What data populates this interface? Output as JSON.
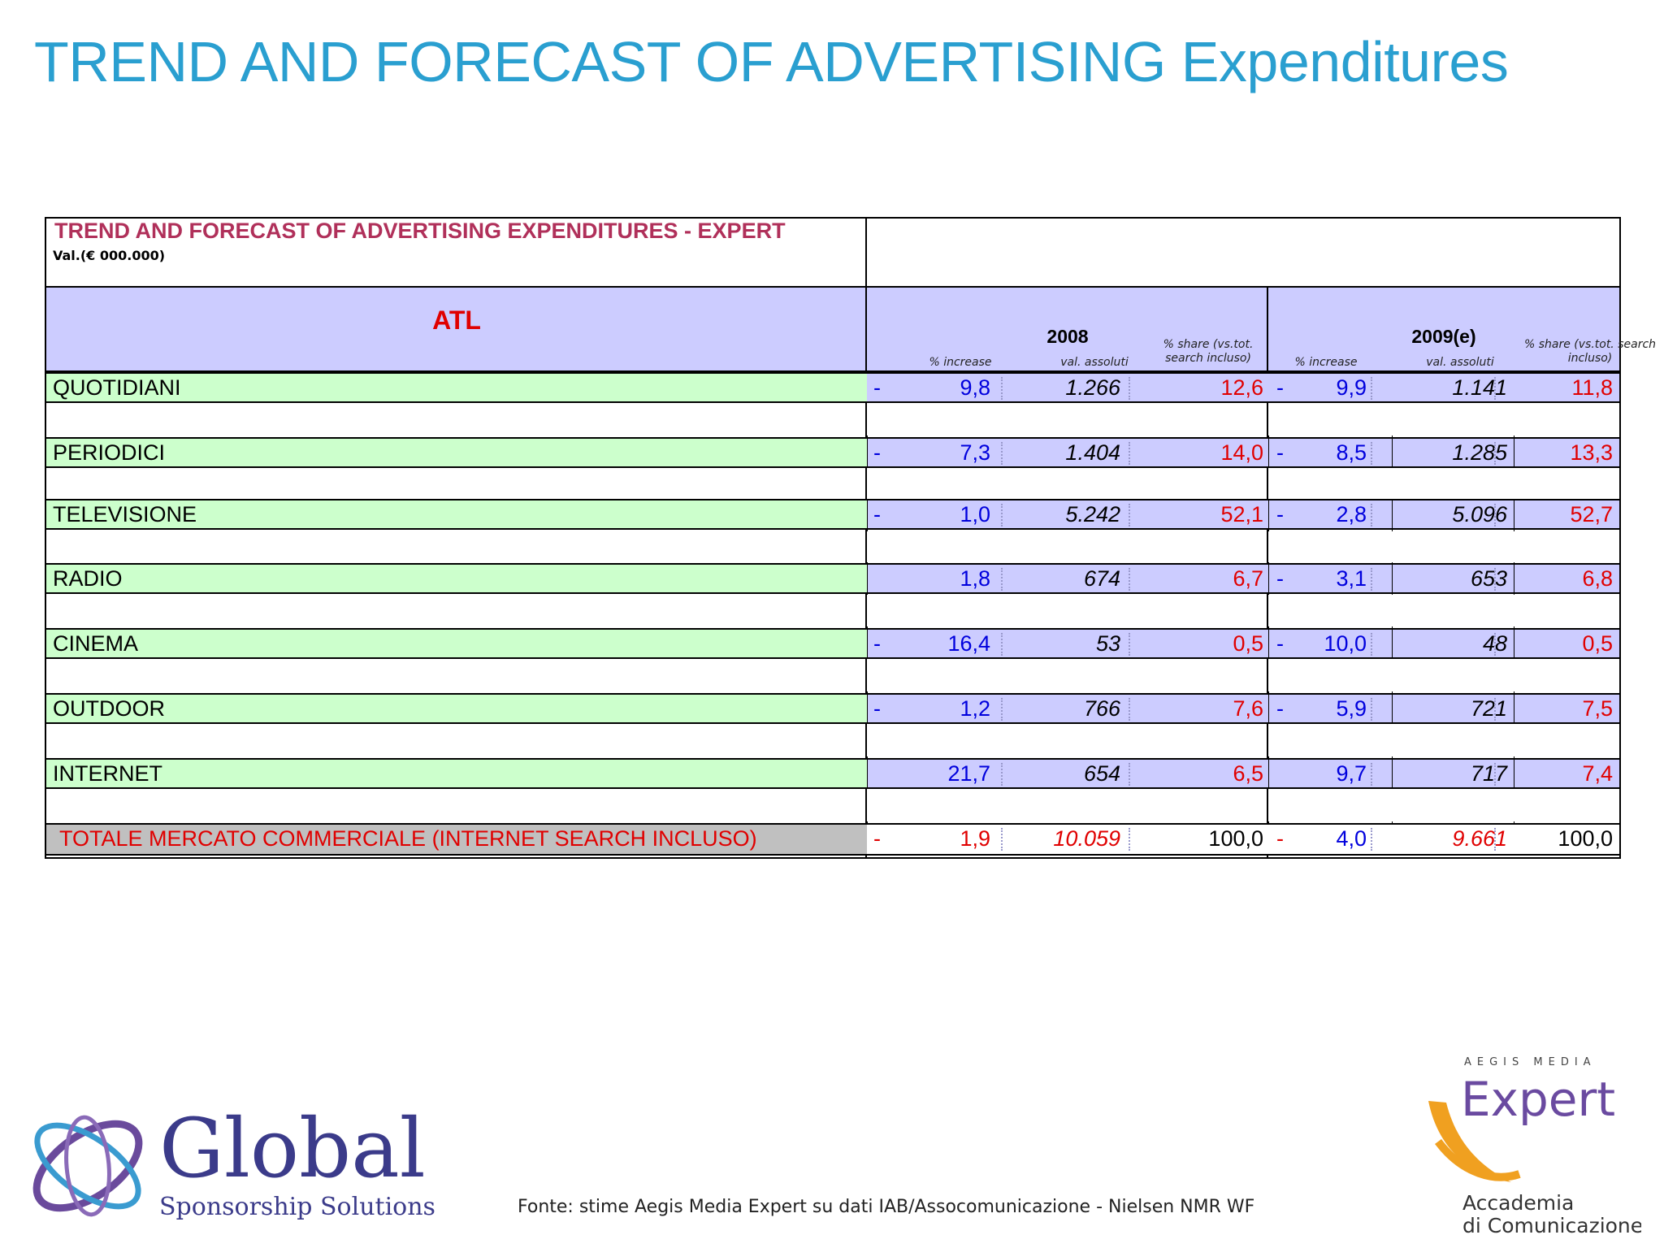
{
  "slide_title": "TREND AND FORECAST OF ADVERTISING Expenditures",
  "table": {
    "title": "TREND AND FORECAST OF ADVERTISING EXPENDITURES - EXPERT",
    "unit": "Val.(€ 000.000)",
    "section_label": "ATL",
    "years": [
      "2008",
      "2009(e)"
    ],
    "subheaders": {
      "increase": "% increase",
      "absolute": "val. assoluti",
      "share_2008": "% share (vs.tot. search incluso)",
      "share_2009": "% share (vs.tot. search incluso)"
    },
    "rows": [
      {
        "label": "QUOTIDIANI",
        "y2008": {
          "neg": "-",
          "inc": "9,8",
          "abs": "1.266",
          "share": "12,6"
        },
        "y2009": {
          "neg": "-",
          "inc": "9,9",
          "abs": "1.141",
          "share": "11,8"
        }
      },
      {
        "label": "PERIODICI",
        "y2008": {
          "neg": "-",
          "inc": "7,3",
          "abs": "1.404",
          "share": "14,0"
        },
        "y2009": {
          "neg": "-",
          "inc": "8,5",
          "abs": "1.285",
          "share": "13,3"
        }
      },
      {
        "label": "TELEVISIONE",
        "y2008": {
          "neg": "-",
          "inc": "1,0",
          "abs": "5.242",
          "share": "52,1"
        },
        "y2009": {
          "neg": "-",
          "inc": "2,8",
          "abs": "5.096",
          "share": "52,7"
        }
      },
      {
        "label": "RADIO",
        "y2008": {
          "neg": "",
          "inc": "1,8",
          "abs": "674",
          "share": "6,7"
        },
        "y2009": {
          "neg": "-",
          "inc": "3,1",
          "abs": "653",
          "share": "6,8"
        }
      },
      {
        "label": "CINEMA",
        "y2008": {
          "neg": "-",
          "inc": "16,4",
          "abs": "53",
          "share": "0,5"
        },
        "y2009": {
          "neg": "-",
          "inc": "10,0",
          "abs": "48",
          "share": "0,5"
        }
      },
      {
        "label": "OUTDOOR",
        "y2008": {
          "neg": "-",
          "inc": "1,2",
          "abs": "766",
          "share": "7,6"
        },
        "y2009": {
          "neg": "-",
          "inc": "5,9",
          "abs": "721",
          "share": "7,5"
        }
      },
      {
        "label": "INTERNET",
        "y2008": {
          "neg": "",
          "inc": "21,7",
          "abs": "654",
          "share": "6,5"
        },
        "y2009": {
          "neg": "",
          "inc": "9,7",
          "abs": "717",
          "share": "7,4"
        }
      }
    ],
    "total": {
      "label": "TOTALE MERCATO COMMERCIALE (INTERNET SEARCH INCLUSO)",
      "y2008": {
        "neg": "-",
        "inc": "1,9",
        "abs": "10.059",
        "share": "100,0"
      },
      "y2009": {
        "neg": "-",
        "inc": "4,0",
        "abs": "9.661",
        "share": "100,0"
      }
    }
  },
  "source": "Fonte: stime Aegis Media Expert su dati IAB/Assocomunicazione - Nielsen NMR WF",
  "logos": {
    "global": {
      "name": "Global",
      "tagline": "Sponsorship Solutions"
    },
    "expert": {
      "top": "AEGIS MEDIA",
      "name": "Expert",
      "line1": "Accademia",
      "line2": "di Comunicazione"
    }
  },
  "colors": {
    "title": "#2a9fd0",
    "header_red": "#b0305a",
    "row_green": "#ccffcc",
    "value_lavender": "#ccccff",
    "blue_text": "#0000dd",
    "red_text": "#e00000"
  }
}
